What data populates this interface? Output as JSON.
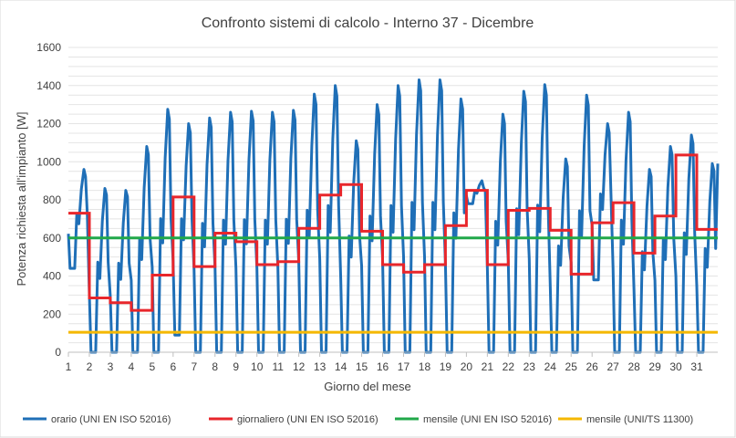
{
  "chart_data": {
    "type": "line",
    "title": "Confronto sistemi di calcolo - Interno 37 - Dicembre",
    "xlabel": "Giorno del mese",
    "ylabel": "Potenza richiesta all'impianto [W]",
    "x_ticks": [
      "1",
      "2",
      "3",
      "4",
      "5",
      "6",
      "7",
      "8",
      "9",
      "10",
      "11",
      "12",
      "13",
      "14",
      "15",
      "16",
      "17",
      "18",
      "19",
      "20",
      "21",
      "22",
      "23",
      "24",
      "25",
      "26",
      "27",
      "28",
      "29",
      "30",
      "31"
    ],
    "y_ticks": [
      0,
      200,
      400,
      600,
      800,
      1000,
      1200,
      1400,
      1600
    ],
    "ylim": [
      0,
      1600
    ],
    "xlim": [
      1,
      32
    ],
    "grid": true,
    "legend_position": "bottom",
    "series": [
      {
        "name": "orario (UNI EN ISO 52016)",
        "color": "#1f6fb7",
        "kind": "hourly",
        "daily_peak": [
          960,
          860,
          850,
          1080,
          1275,
          1200,
          1230,
          1260,
          1265,
          1260,
          1270,
          1355,
          1400,
          1110,
          1300,
          1400,
          1430,
          1430,
          1330,
          900,
          1250,
          1370,
          1405,
          1015,
          1350,
          1200,
          1260,
          960,
          1080,
          1140,
          990
        ],
        "daily_trough": [
          440,
          0,
          0,
          0,
          0,
          90,
          0,
          0,
          0,
          0,
          0,
          0,
          0,
          0,
          0,
          0,
          0,
          0,
          0,
          780,
          0,
          0,
          0,
          0,
          0,
          380,
          0,
          0,
          0,
          0,
          0
        ]
      },
      {
        "name": "giornaliero (UNI EN ISO 52016)",
        "color": "#e8262b",
        "kind": "step",
        "values": [
          730,
          285,
          260,
          220,
          405,
          815,
          450,
          625,
          580,
          460,
          475,
          650,
          825,
          880,
          635,
          460,
          420,
          460,
          665,
          850,
          460,
          745,
          755,
          640,
          410,
          680,
          785,
          520,
          715,
          1035,
          645
        ]
      },
      {
        "name": "mensile (UNI EN ISO 52016)",
        "color": "#21a84a",
        "kind": "constant",
        "values": [
          600
        ]
      },
      {
        "name": "mensile (UNI/TS 11300)",
        "color": "#f5b800",
        "kind": "constant",
        "values": [
          105
        ]
      }
    ]
  }
}
